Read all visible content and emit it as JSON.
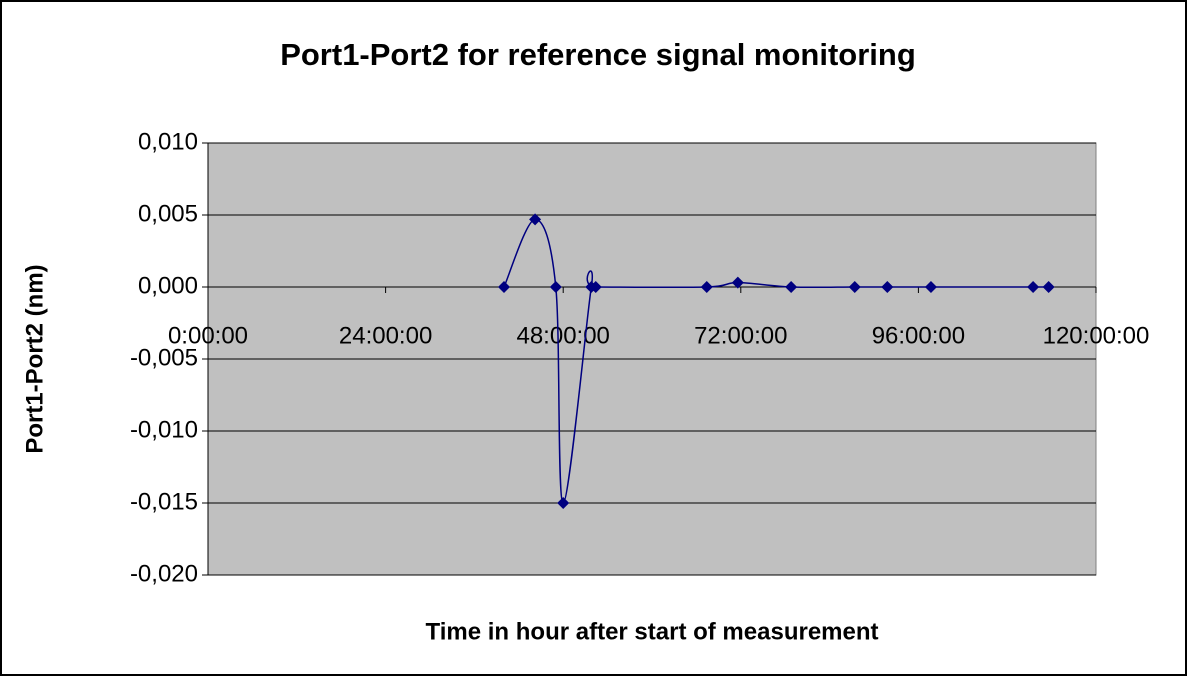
{
  "chart_data": {
    "type": "line",
    "title": "Port1-Port2 for reference signal monitoring",
    "x_label": "Time in hour after start of measurement",
    "y_label": "Port1-Port2 (nm)",
    "x": [
      40,
      44.2,
      47,
      48,
      51.8,
      52.4,
      67.4,
      71.6,
      78.8,
      87.4,
      91.8,
      97.7,
      111.5,
      113.6
    ],
    "series": [
      {
        "name": "Port1-Port2",
        "color": "#000080",
        "values": [
          0,
          0.0047,
          0,
          -0.015,
          0,
          0,
          0,
          0.0003,
          0,
          0,
          0,
          0,
          0,
          0
        ]
      }
    ],
    "xlim": [
      0,
      120
    ],
    "xticks": [
      {
        "value": 0,
        "label": "0:00:00"
      },
      {
        "value": 24,
        "label": "24:00:00"
      },
      {
        "value": 48,
        "label": "48:00:00"
      },
      {
        "value": 72,
        "label": "72:00:00"
      },
      {
        "value": 96,
        "label": "96:00:00"
      },
      {
        "value": 120,
        "label": "120:00:00"
      }
    ],
    "ylim": [
      -0.02,
      0.01
    ],
    "yticks": [
      {
        "value": -0.02,
        "label": "-0,020"
      },
      {
        "value": -0.015,
        "label": "-0,015"
      },
      {
        "value": -0.01,
        "label": "-0,010"
      },
      {
        "value": -0.005,
        "label": "-0,005"
      },
      {
        "value": 0,
        "label": "0,000"
      },
      {
        "value": 0.005,
        "label": "0,005"
      },
      {
        "value": 0.01,
        "label": "0,010"
      }
    ],
    "grid": true,
    "plot_background": "#c0c0c0"
  }
}
